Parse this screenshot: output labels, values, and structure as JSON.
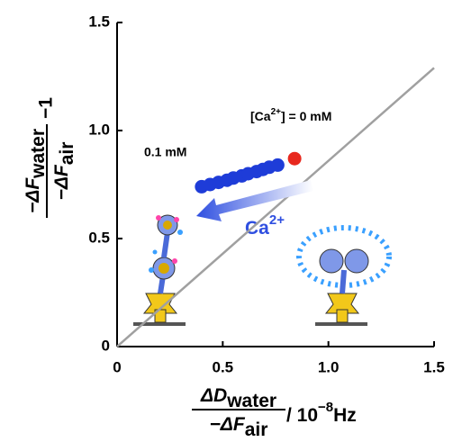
{
  "chart_data": {
    "type": "scatter",
    "xlim": [
      0,
      1.5
    ],
    "ylim": [
      0,
      1.5
    ],
    "xticks": [
      0,
      0.5,
      {
        "value": 1,
        "label": "1.0"
      },
      1.5
    ],
    "yticks": [
      0,
      0.5,
      {
        "value": 1,
        "label": "1.0"
      },
      1.5
    ],
    "x_label": {
      "numerator": [
        "ΔD",
        "water"
      ],
      "denominator": [
        "−ΔF",
        "air"
      ],
      "suffix": [
        "/ 10",
        "−8",
        "Hz"
      ]
    },
    "y_label": {
      "numerator": [
        "−ΔF",
        "water"
      ],
      "denominator": [
        "−ΔF",
        "air"
      ],
      "suffix": "−1"
    },
    "reference_line": {
      "x": [
        0,
        1.5
      ],
      "y": [
        0,
        1.29
      ],
      "color": "#a0a0a0"
    },
    "series": [
      {
        "color": "#1e3cd8",
        "x": [
          0.4,
          0.44,
          0.48,
          0.52,
          0.55,
          0.59,
          0.62,
          0.66,
          0.69,
          0.72,
          0.76
        ],
        "y": [
          0.74,
          0.75,
          0.76,
          0.77,
          0.78,
          0.79,
          0.8,
          0.81,
          0.82,
          0.83,
          0.84
        ]
      },
      {
        "color": "#e8281e",
        "x": [
          0.84
        ],
        "y": [
          0.87
        ]
      }
    ],
    "annotations": {
      "low": "0.1 mM",
      "zero": [
        "[Ca",
        "2+",
        "] = 0 mM"
      ],
      "arrow": [
        "Ca",
        "2+"
      ]
    }
  }
}
